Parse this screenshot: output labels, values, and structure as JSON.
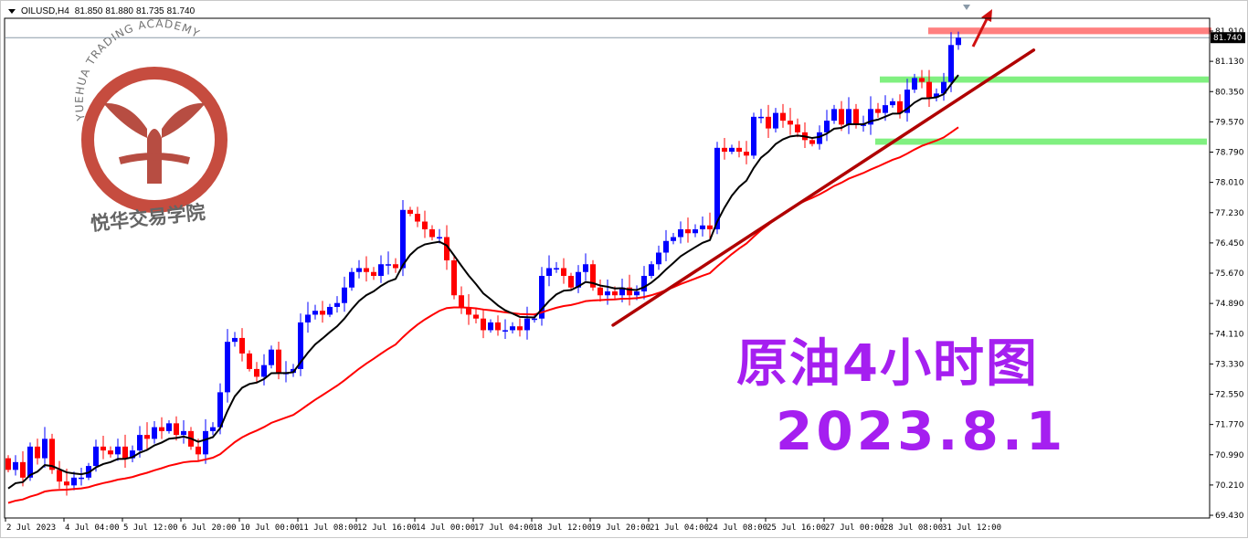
{
  "header": {
    "symbol": "OILUSD,H4",
    "open": "81.850",
    "high": "81.880",
    "low": "81.735",
    "close": "81.740"
  },
  "watermark": {
    "arc_text": "YUEHUA TRADING ACADEMY",
    "cn_text": "悦华交易学院"
  },
  "annotation": {
    "title": "原油4小时图",
    "date": "2023.8.1"
  },
  "current_price_label": "81.740",
  "colors": {
    "bull": "#0000ff",
    "bear": "#ff0000",
    "fast_ma": "#000000",
    "slow_ma": "#ff0000",
    "trendline": "#b00000",
    "resistance_band": "#ff8080",
    "support_band": "#80f080",
    "title": "#a51ff0"
  },
  "chart_data": {
    "type": "candlestick",
    "timeframe": "H4",
    "ylim": [
      69.43,
      82.3
    ],
    "y_ticks": [
      "81.910",
      "81.130",
      "80.350",
      "79.570",
      "78.790",
      "78.010",
      "77.230",
      "76.450",
      "75.670",
      "74.890",
      "74.110",
      "73.330",
      "72.550",
      "71.770",
      "70.990",
      "70.210",
      "69.430"
    ],
    "x_ticks": [
      "2 Jul 2023",
      "4 Jul 04:00",
      "5 Jul 12:00",
      "6 Jul 20:00",
      "10 Jul 00:00",
      "11 Jul 08:00",
      "12 Jul 16:00",
      "14 Jul 00:00",
      "17 Jul 04:00",
      "18 Jul 12:00",
      "19 Jul 20:00",
      "21 Jul 04:00",
      "24 Jul 08:00",
      "25 Jul 16:00",
      "27 Jul 00:00",
      "28 Jul 08:00",
      "31 Jul 12:00"
    ],
    "closes": [
      70.6,
      70.8,
      70.4,
      71.2,
      70.9,
      71.4,
      70.6,
      70.3,
      70.2,
      70.4,
      70.4,
      70.7,
      71.2,
      71.1,
      71.0,
      71.2,
      70.9,
      71.1,
      71.5,
      71.4,
      71.7,
      71.6,
      71.8,
      71.5,
      71.6,
      71.2,
      71.0,
      71.6,
      71.7,
      72.6,
      73.9,
      74.0,
      73.6,
      73.2,
      73.0,
      73.3,
      73.7,
      73.1,
      73.1,
      73.2,
      74.4,
      74.6,
      74.7,
      74.6,
      74.8,
      74.9,
      75.3,
      75.7,
      75.8,
      75.7,
      75.6,
      75.9,
      75.9,
      75.8,
      77.3,
      77.2,
      77.0,
      76.8,
      76.6,
      76.6,
      76.0,
      75.1,
      74.8,
      74.6,
      74.5,
      74.2,
      74.4,
      74.2,
      74.2,
      74.3,
      74.2,
      74.5,
      74.5,
      75.6,
      75.8,
      75.8,
      75.6,
      75.3,
      75.7,
      75.9,
      75.3,
      75.1,
      75.2,
      75.1,
      75.3,
      75.1,
      75.2,
      75.6,
      75.9,
      76.2,
      76.5,
      76.6,
      76.8,
      76.7,
      76.8,
      76.9,
      76.8,
      78.9,
      78.8,
      78.9,
      78.8,
      78.7,
      79.7,
      79.7,
      79.4,
      79.8,
      79.6,
      79.5,
      79.3,
      79.1,
      79.0,
      79.3,
      79.6,
      79.9,
      79.5,
      79.9,
      79.5,
      79.5,
      79.9,
      79.8,
      80.0,
      80.1,
      79.8,
      80.4,
      80.7,
      80.6,
      80.2,
      80.3,
      80.6,
      81.55,
      81.74
    ],
    "current_price": 81.74,
    "bands": [
      {
        "name": "resistance",
        "price_low": 81.83,
        "price_high": 82.0
      },
      {
        "name": "support-upper",
        "price_low": 80.58,
        "price_high": 80.74
      },
      {
        "name": "support-lower",
        "price_low": 78.98,
        "price_high": 79.14
      }
    ],
    "trendline": {
      "start": [
        82.75,
        74.33
      ],
      "end": [
        140.3,
        81.42
      ]
    }
  }
}
